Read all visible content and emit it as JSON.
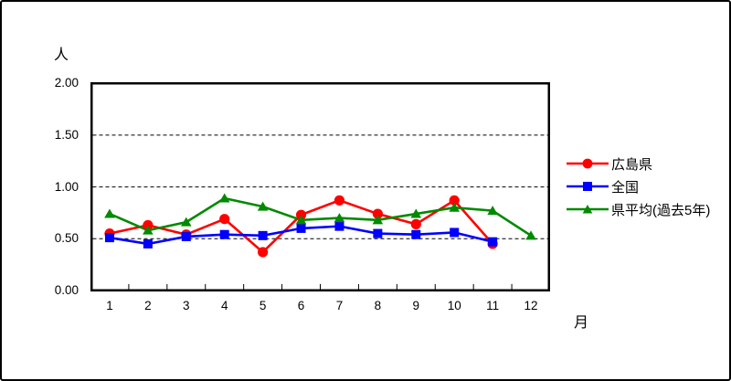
{
  "chart_data": {
    "type": "line",
    "x": [
      1,
      2,
      3,
      4,
      5,
      6,
      7,
      8,
      9,
      10,
      11,
      12
    ],
    "series": [
      {
        "name": "広島県",
        "color": "#ff0000",
        "marker": "circle",
        "values": [
          0.55,
          0.63,
          0.54,
          0.69,
          0.37,
          0.73,
          0.87,
          0.74,
          0.64,
          0.87,
          0.45,
          null
        ]
      },
      {
        "name": "全国",
        "color": "#0000ff",
        "marker": "square",
        "values": [
          0.51,
          0.45,
          0.52,
          0.54,
          0.53,
          0.6,
          0.62,
          0.55,
          0.54,
          0.56,
          0.47,
          null
        ]
      },
      {
        "name": "県平均(過去5年)",
        "color": "#008a00",
        "marker": "triangle",
        "values": [
          0.74,
          0.58,
          0.66,
          0.89,
          0.81,
          0.68,
          0.7,
          0.68,
          0.74,
          0.8,
          0.77,
          0.53
        ]
      }
    ],
    "y_axis": {
      "unit_label": "人",
      "min": 0.0,
      "max": 2.0,
      "step": 0.5,
      "tick_labels": [
        "0.00",
        "0.50",
        "1.00",
        "1.50",
        "2.00"
      ]
    },
    "x_axis": {
      "unit_label": "月",
      "tick_labels": [
        "1",
        "2",
        "3",
        "4",
        "5",
        "6",
        "7",
        "8",
        "9",
        "10",
        "11",
        "12"
      ]
    },
    "legend_position": "right",
    "grid": "horizontal-dashed",
    "plot_border_color": "#000000",
    "background_color": "#ffffff"
  }
}
